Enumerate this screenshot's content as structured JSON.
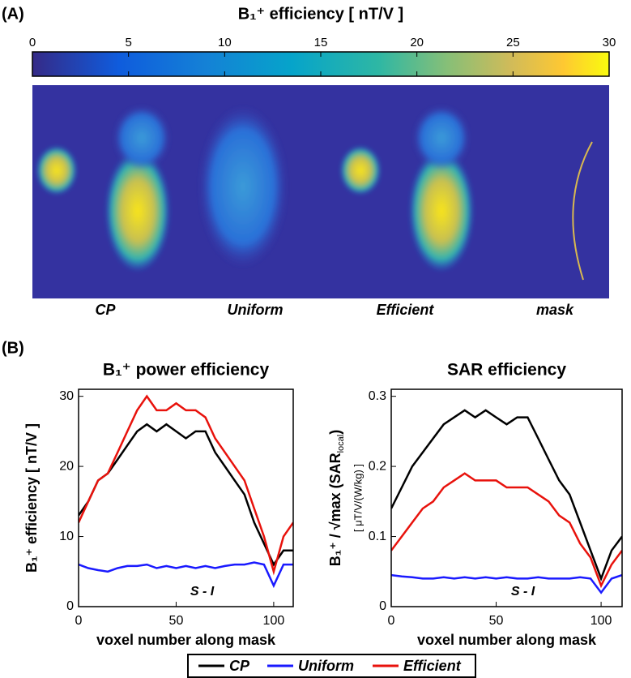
{
  "panel_a": {
    "label": "(A)",
    "colorbar": {
      "title": "B₁⁺ efficiency [ nT/V ]",
      "lim": [
        0,
        30
      ],
      "ticks": [
        0,
        5,
        10,
        15,
        20,
        25,
        30
      ]
    },
    "images": [
      "CP",
      "Uniform",
      "Efficient",
      "mask"
    ]
  },
  "panel_b_label": "(B)",
  "chart_data": [
    {
      "type": "line",
      "title": "B₁⁺ power efficiency",
      "x_label": "voxel number along mask",
      "y_label": [
        "B₁⁺ efficiency [ nT/V ]"
      ],
      "annotation": "S - I",
      "x": [
        0,
        5,
        10,
        15,
        20,
        25,
        30,
        35,
        40,
        45,
        50,
        55,
        60,
        65,
        70,
        75,
        80,
        85,
        90,
        95,
        100,
        105,
        110
      ],
      "xlim": [
        0,
        110
      ],
      "xticks": [
        0,
        50,
        100
      ],
      "ylim": [
        0,
        31
      ],
      "yticks": [
        0,
        10,
        20,
        30
      ],
      "series": [
        {
          "name": "CP",
          "color": "#000000",
          "values": [
            13,
            15,
            18,
            19,
            21,
            23,
            25,
            26,
            25,
            26,
            25,
            24,
            25,
            25,
            22,
            20,
            18,
            16,
            12,
            9,
            6,
            8,
            8
          ]
        },
        {
          "name": "Uniform",
          "color": "#1a1aff",
          "values": [
            6,
            5.5,
            5.2,
            5,
            5.5,
            5.8,
            5.8,
            6,
            5.5,
            5.8,
            5.5,
            5.8,
            5.5,
            5.8,
            5.5,
            5.8,
            6,
            6,
            6.3,
            6,
            3,
            6,
            6
          ]
        },
        {
          "name": "Efficient",
          "color": "#e8120c",
          "values": [
            12,
            15,
            18,
            19,
            22,
            25,
            28,
            30,
            28,
            28,
            29,
            28,
            28,
            27,
            24,
            22,
            20,
            18,
            14,
            10,
            5,
            10,
            12
          ]
        }
      ]
    },
    {
      "type": "line",
      "title": "SAR efficiency",
      "x_label": "voxel number along mask",
      "y_label": [
        "B₁⁺ / √max (SAR",
        "local",
        ")"
      ],
      "y_unit": "[ μT/V/(W/kg) ]",
      "annotation": "S - I",
      "x": [
        0,
        5,
        10,
        15,
        20,
        25,
        30,
        35,
        40,
        45,
        50,
        55,
        60,
        65,
        70,
        75,
        80,
        85,
        90,
        95,
        100,
        105,
        110
      ],
      "xlim": [
        0,
        110
      ],
      "xticks": [
        0,
        50,
        100
      ],
      "ylim": [
        0,
        0.31
      ],
      "yticks": [
        0,
        0.1,
        0.2,
        0.3
      ],
      "series": [
        {
          "name": "CP",
          "color": "#000000",
          "values": [
            0.14,
            0.17,
            0.2,
            0.22,
            0.24,
            0.26,
            0.27,
            0.28,
            0.27,
            0.28,
            0.27,
            0.26,
            0.27,
            0.27,
            0.24,
            0.21,
            0.18,
            0.16,
            0.12,
            0.08,
            0.04,
            0.08,
            0.1
          ]
        },
        {
          "name": "Uniform",
          "color": "#1a1aff",
          "values": [
            0.045,
            0.043,
            0.042,
            0.04,
            0.04,
            0.042,
            0.04,
            0.042,
            0.04,
            0.042,
            0.04,
            0.042,
            0.04,
            0.04,
            0.042,
            0.04,
            0.04,
            0.04,
            0.042,
            0.04,
            0.02,
            0.04,
            0.045
          ]
        },
        {
          "name": "Efficient",
          "color": "#e8120c",
          "values": [
            0.08,
            0.1,
            0.12,
            0.14,
            0.15,
            0.17,
            0.18,
            0.19,
            0.18,
            0.18,
            0.18,
            0.17,
            0.17,
            0.17,
            0.16,
            0.15,
            0.13,
            0.12,
            0.09,
            0.07,
            0.03,
            0.06,
            0.08
          ]
        }
      ]
    }
  ]
}
